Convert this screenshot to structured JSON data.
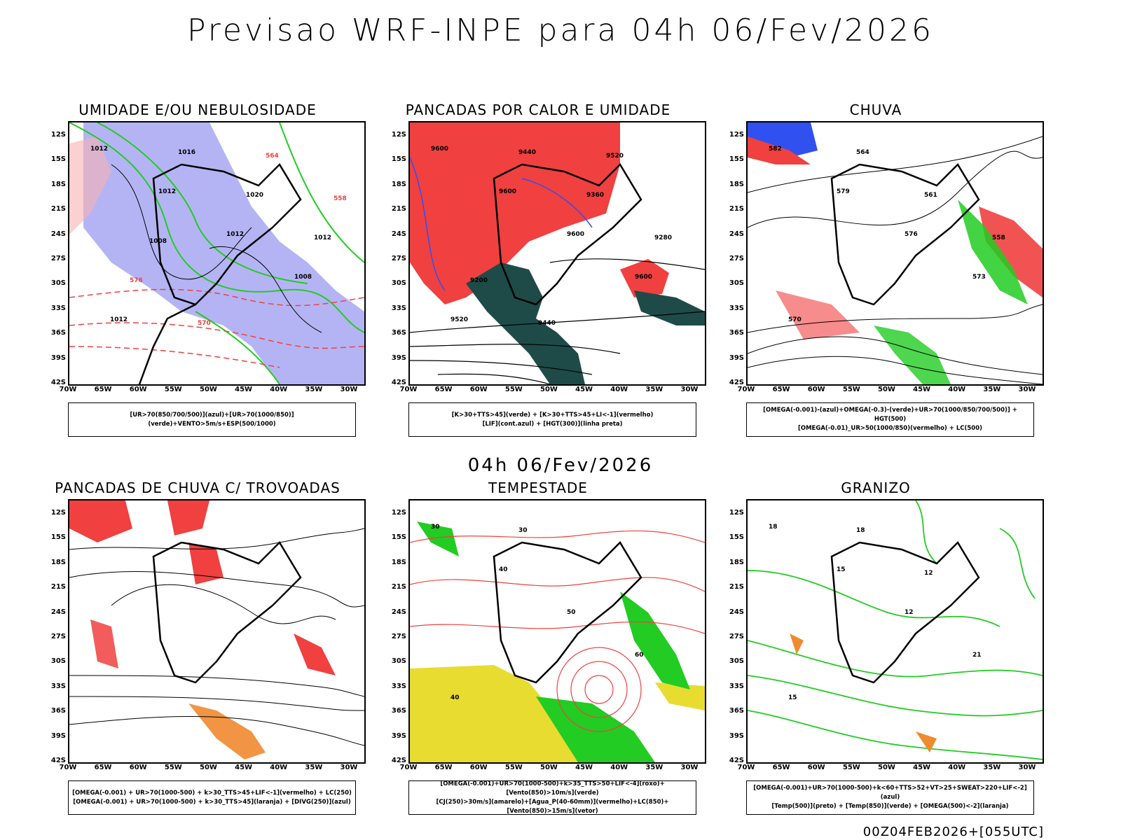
{
  "main_title": "Previsao WRF-INPE  para 04h 06/Fev/2026",
  "mid_title": "04h 06/Fev/2026",
  "footer": "00Z04FEB2026+[055UTC]",
  "lat_labels": [
    "12S",
    "15S",
    "18S",
    "21S",
    "24S",
    "27S",
    "30S",
    "33S",
    "36S",
    "39S",
    "42S"
  ],
  "lon_labels": [
    "70W",
    "65W",
    "60W",
    "55W",
    "50W",
    "45W",
    "40W",
    "35W",
    "30W"
  ],
  "panels": [
    {
      "title": "UMIDADE E/OU NEBULOSIDADE",
      "legend": [
        "[UR>70(850/700/500)](azul)+[UR>70(1000/850)](verde)+VENTO>5m/s+ESP(500/1000)"
      ],
      "contour_labels": [
        "1012",
        "1012",
        "1012",
        "1008",
        "1012",
        "1016",
        "1020",
        "1012",
        "576",
        "570",
        "564",
        "558",
        "1008"
      ]
    },
    {
      "title": "PANCADAS POR CALOR E UMIDADE",
      "legend": [
        "[K>30+TTS>45](verde) + [K>30+TTS>45+LI<-1](vermelho)",
        "[LIF](cont.azul) + [HGT(300)](linha preta)"
      ],
      "contour_labels": [
        "9600",
        "9600",
        "9600",
        "9600",
        "9520",
        "9440",
        "9360",
        "9280",
        "9200",
        "9440",
        "9520"
      ]
    },
    {
      "title": "CHUVA",
      "legend": [
        "[OMEGA(-0.001)-(azul)+OMEGA(-0.3)-(verde)+UR>70(1000/850/700/500)] + HGT(500)",
        "[OMEGA(-0.01)_UR>50(1000/850)(vermelho) + LC(500)"
      ],
      "contour_labels": [
        "582",
        "579",
        "576",
        "573",
        "570",
        "564",
        "561",
        "558"
      ]
    },
    {
      "title": "PANCADAS DE CHUVA C/ TROVOADAS",
      "legend": [
        "[OMEGA(-0.001) + UR>70(1000-500) + k>30_TTS>45+LIF<-1](vermelho) + LC(250)",
        "[OMEGA(-0.001) + UR>70(1000-500) + k>30_TTS>45](laranja) + [DIVG(250)](azul)"
      ],
      "contour_labels": []
    },
    {
      "title": "TEMPESTADE",
      "legend": [
        "[OMEGA(-0.001)+UR>70(1000-500)+k>35_TTS>50+LIF<-4](roxo)+[Vento(850)>10m/s](verde)",
        "[CJ(250)>30m/s](amarelo)+[Agua_P(40-60mm)](vermelho)+LC(850)+[Vento(850)>15m/s](vetor)"
      ],
      "contour_labels": [
        "30",
        "40",
        "50",
        "60",
        "40",
        "30"
      ]
    },
    {
      "title": "GRANIZO",
      "legend": [
        "[OMEGA(-0.001)+UR>70(1000-500)+k<60+TTS>52+VT>25+SWEAT>220+LIF<-2](azul)",
        "[Temp(500)](preto) + [Temp(850)](verde) + [OMEGA(500)<-2](laranja)"
      ],
      "contour_labels": [
        "18",
        "15",
        "12",
        "21",
        "15",
        "18",
        "12"
      ]
    }
  ],
  "colors": {
    "blue_fill": "#9b9bf0",
    "green_line": "#22cc22",
    "red": "#f04040",
    "dark_teal": "#1e4b48",
    "yellow": "#e8dc30",
    "orange": "#f08a30"
  }
}
